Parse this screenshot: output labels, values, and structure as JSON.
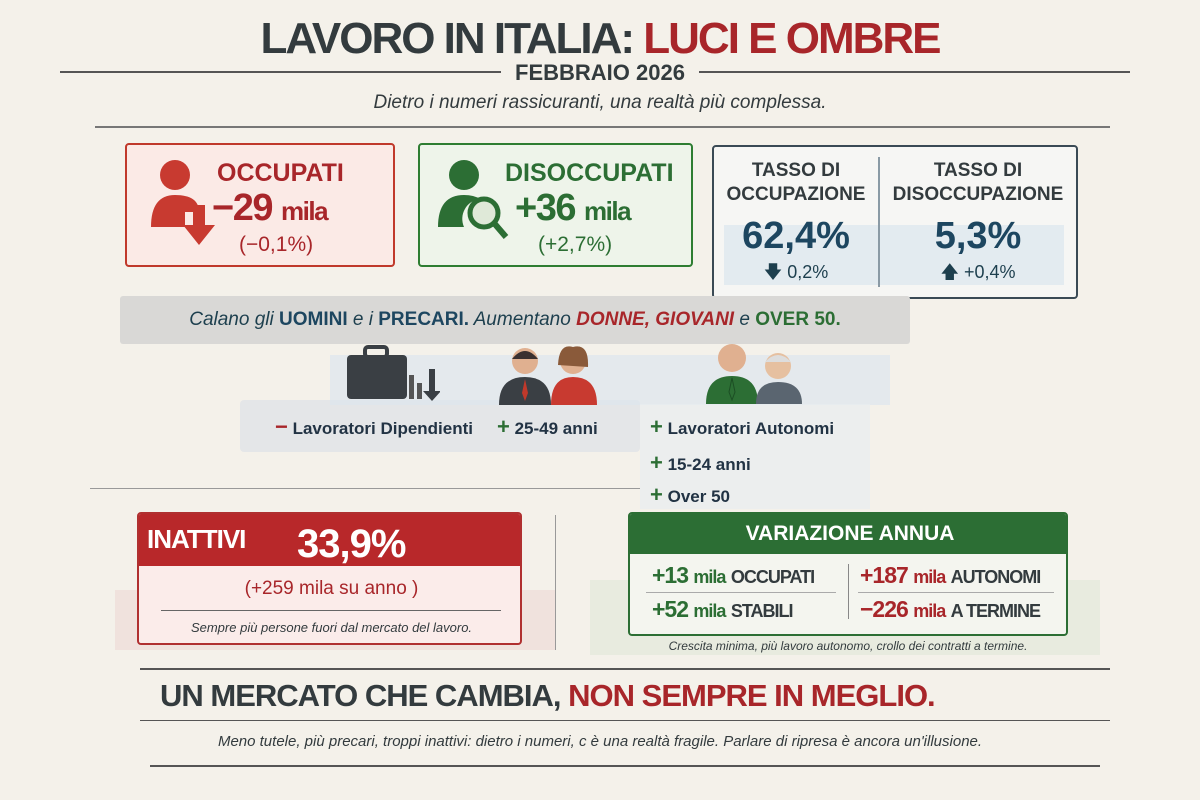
{
  "header": {
    "title_dark": "LAVORO IN ITALIA:",
    "title_red": "LUCI E OMBRE",
    "date": "FEBBRAIO 2026",
    "subtitle": "Dietro i numeri rassicuranti, una realtà più complessa."
  },
  "occupati": {
    "label": "OCCUPATI",
    "value": "−29",
    "unit": "mila",
    "pct": "(−0,1%)"
  },
  "disoccupati": {
    "label": "DISOCCUPATI",
    "value": "+36",
    "unit": "mila",
    "pct": "(+2,7%)"
  },
  "tassi": [
    {
      "label1": "TASSO DI",
      "label2": "OCCUPAZIONE",
      "value": "62,4%",
      "change": "0,2%",
      "dir": "down"
    },
    {
      "label1": "TASSO DI",
      "label2": "DISOCCUPAZIONE",
      "value": "5,3%",
      "change": "+0,4%",
      "dir": "up"
    }
  ],
  "banner": {
    "p1": "Calano gli ",
    "uomini": "UOMINI",
    "p2": " e i ",
    "precari": "PRECARI.",
    "p3": " Aumentano ",
    "donne": "DONNE, GIOVANI",
    "p4": " e ",
    "over": "OVER 50."
  },
  "groups": {
    "minus": "−",
    "plus": "+",
    "dipendenti": "Lavoratori Dipendienti",
    "eta": "25-49 anni",
    "list": [
      "Lavoratori Autonomi",
      "15-24 anni",
      "Over 50"
    ]
  },
  "inattivi": {
    "label": "INATTIVI",
    "value": "33,9%",
    "change": "(+259 mila su anno )",
    "note": "Sempre più persone fuori dal mercato del lavoro."
  },
  "variazione": {
    "title": "VARIAZIONE ANNUA",
    "rows": [
      {
        "value": "+13",
        "unit": "mila",
        "label": "OCCUPATI"
      },
      {
        "value": "+187",
        "unit": "mila",
        "label": "AUTONOMI"
      },
      {
        "value": "+52",
        "unit": "mila",
        "label": "STABILI"
      },
      {
        "value": "−226",
        "unit": "mila",
        "label": "A TERMINE"
      }
    ],
    "caption": "Crescita minima, più lavoro autonomo, crollo dei contratti a termine."
  },
  "footer": {
    "headline_dark": "UN MERCATO CHE CAMBIA,",
    "headline_red": "NON SEMPRE IN MEGLIO.",
    "text": "Meno tutele, più precari, troppi inattivi: dietro i numeri, c è una realtà fragile. Parlare di ripresa è ancora un'illusione."
  }
}
